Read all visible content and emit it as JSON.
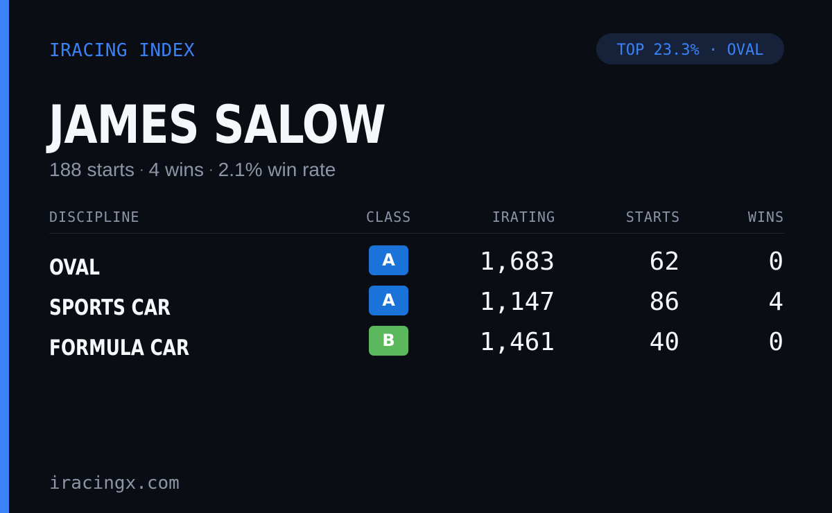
{
  "brand": "IRACING INDEX",
  "badge": "TOP 23.3% · OVAL",
  "driver": {
    "name": "JAMES SALOW",
    "starts_text": "188 starts",
    "wins_text": "4 wins",
    "win_rate_text": "2.1% win rate",
    "separator": "·"
  },
  "table": {
    "headers": {
      "discipline": "DISCIPLINE",
      "class": "CLASS",
      "irating": "IRATING",
      "starts": "STARTS",
      "wins": "WINS"
    },
    "rows": [
      {
        "discipline": "OVAL",
        "class": "A",
        "class_color": "#1a73d9",
        "irating": "1,683",
        "starts": "62",
        "wins": "0"
      },
      {
        "discipline": "SPORTS CAR",
        "class": "A",
        "class_color": "#1a73d9",
        "irating": "1,147",
        "starts": "86",
        "wins": "4"
      },
      {
        "discipline": "FORMULA CAR",
        "class": "B",
        "class_color": "#5cb85c",
        "irating": "1,461",
        "starts": "40",
        "wins": "0"
      }
    ]
  },
  "footer": "iracingx.com",
  "colors": {
    "accent": "#3b82f6",
    "background": "#0a0d14",
    "badge_background": "#16223a",
    "text_primary": "#f5f7fa",
    "text_muted": "#8b95a6"
  }
}
